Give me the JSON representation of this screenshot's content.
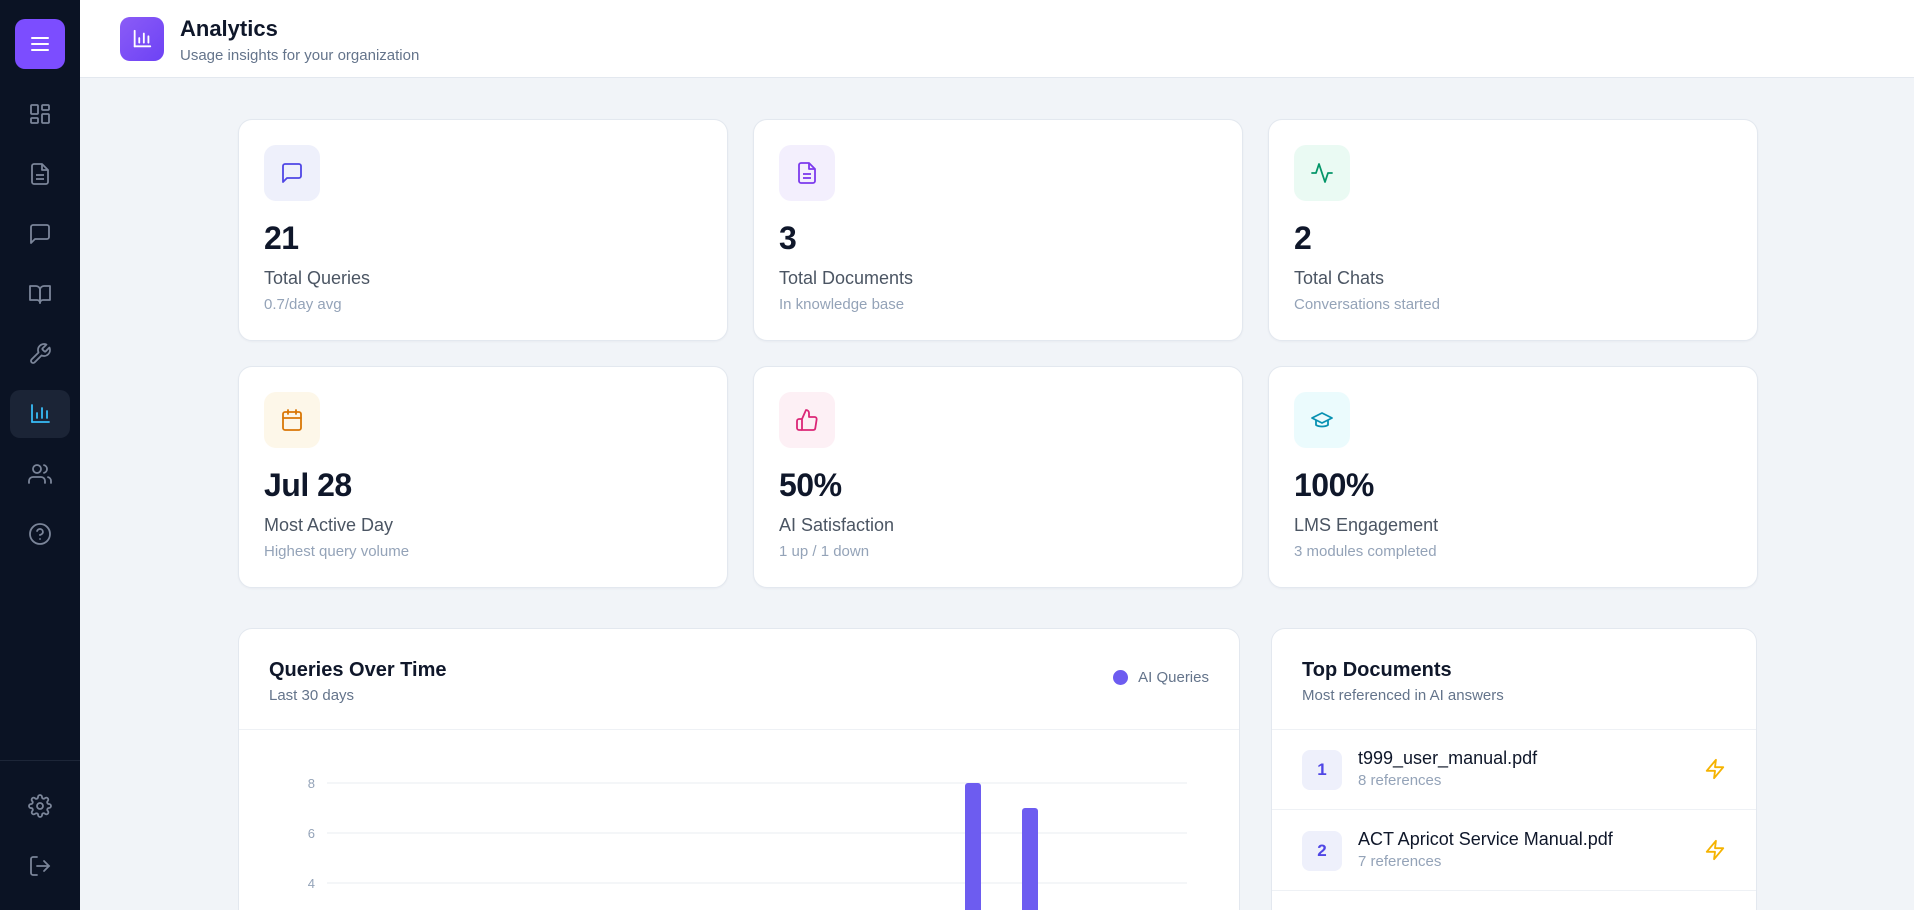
{
  "header": {
    "title": "Analytics",
    "subtitle": "Usage insights for your organization",
    "icon": "bar-chart-icon"
  },
  "sidebar": {
    "items": [
      {
        "icon": "menu-icon",
        "active": false
      },
      {
        "icon": "dashboard-icon",
        "active": false
      },
      {
        "icon": "document-icon",
        "active": false
      },
      {
        "icon": "chat-icon",
        "active": false
      },
      {
        "icon": "book-icon",
        "active": false
      },
      {
        "icon": "wrench-icon",
        "active": false
      },
      {
        "icon": "analytics-icon",
        "active": true
      },
      {
        "icon": "users-icon",
        "active": false
      },
      {
        "icon": "help-icon",
        "active": false
      },
      {
        "icon": "settings-icon",
        "active": false
      },
      {
        "icon": "logout-icon",
        "active": false
      }
    ]
  },
  "stats": [
    {
      "value": "21",
      "label": "Total Queries",
      "sub": "0.7/day avg",
      "icon": "message-square-icon",
      "icon_color": "#4f46e5",
      "icon_bg": "#eef0fb"
    },
    {
      "value": "3",
      "label": "Total Documents",
      "sub": "In knowledge base",
      "icon": "file-text-icon",
      "icon_color": "#7c3aed",
      "icon_bg": "#f3effd"
    },
    {
      "value": "2",
      "label": "Total Chats",
      "sub": "Conversations started",
      "icon": "activity-icon",
      "icon_color": "#059669",
      "icon_bg": "#eafaf3"
    },
    {
      "value": "Jul 28",
      "label": "Most Active Day",
      "sub": "Highest query volume",
      "icon": "calendar-icon",
      "icon_color": "#d97706",
      "icon_bg": "#fdf7e9"
    },
    {
      "value": "50%",
      "label": "AI Satisfaction",
      "sub": "1 up / 1 down",
      "icon": "thumbs-up-icon",
      "icon_color": "#db2777",
      "icon_bg": "#fdf0f5"
    },
    {
      "value": "100%",
      "label": "LMS Engagement",
      "sub": "3 modules completed",
      "icon": "graduation-cap-icon",
      "icon_color": "#0891b2",
      "icon_bg": "#ebfbfd"
    }
  ],
  "queries_chart": {
    "title": "Queries Over Time",
    "subtitle": "Last 30 days",
    "legend_label": "AI Queries"
  },
  "chart_data": {
    "type": "bar",
    "series": [
      {
        "name": "AI Queries",
        "values": [
          8,
          7
        ]
      }
    ],
    "y_ticks": [
      "8",
      "6",
      "4"
    ],
    "ylim": [
      0,
      8
    ],
    "color": "#6d5cf0",
    "grid": true
  },
  "top_documents": {
    "title": "Top Documents",
    "subtitle": "Most referenced in AI answers",
    "items": [
      {
        "rank": "1",
        "name": "t999_user_manual.pdf",
        "refs": "8 references"
      },
      {
        "rank": "2",
        "name": "ACT Apricot Service Manual.pdf",
        "refs": "7 references"
      }
    ]
  }
}
